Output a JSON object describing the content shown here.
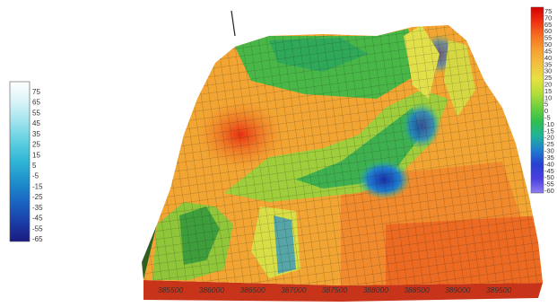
{
  "chart_data": {
    "type": "heatmap",
    "title": "",
    "xlabel": "",
    "ylabel": "",
    "x_ticks": [
      "385500",
      "386000",
      "386500",
      "387000",
      "387500",
      "388000",
      "388500",
      "389000",
      "389500"
    ],
    "legend_left": {
      "placement": "left",
      "ticks": [
        "75",
        "65",
        "55",
        "45",
        "35",
        "25",
        "15",
        "5",
        "-5",
        "-15",
        "-25",
        "-35",
        "-45",
        "-55",
        "-65"
      ],
      "colors": [
        "#ffffff",
        "#d9f3f7",
        "#9fe3ee",
        "#5fcfe0",
        "#2fb5d6",
        "#1e8fcc",
        "#1a66c2",
        "#1a3fa8",
        "#1a1a80"
      ]
    },
    "legend_right": {
      "placement": "right",
      "ticks": [
        "75",
        "70",
        "65",
        "60",
        "55",
        "50",
        "45",
        "40",
        "35",
        "30",
        "25",
        "20",
        "15",
        "10",
        "5",
        "0",
        "-5",
        "-10",
        "-15",
        "-20",
        "-25",
        "-30",
        "-35",
        "-40",
        "-45",
        "-50",
        "-55",
        "-60"
      ],
      "colors": [
        "#d40000",
        "#f03010",
        "#f57020",
        "#f7a030",
        "#f2c040",
        "#e6e040",
        "#b6de3a",
        "#6fcf3c",
        "#2fbf4f",
        "#21b39a",
        "#1f7fd0",
        "#2840d0",
        "#4a3fe0",
        "#8f7df0"
      ]
    },
    "surface": {
      "x_range": [
        385300,
        389800
      ],
      "value_range": [
        -65,
        75
      ],
      "features": [
        {
          "kind": "valley",
          "elevation": -35
        },
        {
          "kind": "ridge",
          "elevation": 40
        },
        {
          "kind": "peak",
          "elevation": 70
        }
      ]
    }
  },
  "colors": {
    "base_slab": "#c8341a",
    "mesh": "#1a1a1a"
  }
}
